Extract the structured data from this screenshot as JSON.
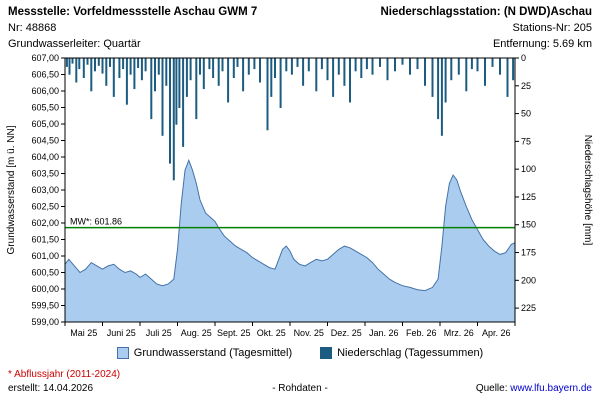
{
  "header": {
    "left": {
      "title": "Messstelle: Vorfeldmessstelle Aschau GWM 7",
      "nr": "Nr: 48868",
      "aquifer": "Grundwasserleiter: Quartär"
    },
    "right": {
      "title": "Niederschlagsstation: (N DWD)Aschau",
      "station_nr": "Stations-Nr: 205",
      "distance": "Entfernung: 5.69 km"
    }
  },
  "chart_data": {
    "type": "line+bar",
    "title": "",
    "left_axis": {
      "title": "Grundwasserstand [m ü. NN]",
      "min": 599.0,
      "max": 607.0,
      "step": 0.5,
      "tick_labels": [
        "607,00",
        "606,50",
        "606,00",
        "605,50",
        "605,00",
        "604,50",
        "604,00",
        "603,50",
        "603,00",
        "602,50",
        "602,00",
        "601,50",
        "601,00",
        "600,50",
        "600,00",
        "599,50",
        "599,00"
      ]
    },
    "right_axis": {
      "title": "Niederschlagshöhe [mm]",
      "tick_values": [
        0,
        25,
        50,
        75,
        100,
        125,
        150,
        175,
        200,
        225
      ],
      "plot_max": 237.5,
      "inverted": true
    },
    "x_axis": {
      "months": 12,
      "labels": [
        "Mai 25",
        "Juni 25",
        "Juli 25",
        "Aug. 25",
        "Sept. 25",
        "Okt. 25",
        "Nov. 25",
        "Dez. 25",
        "Jan. 26",
        "Feb. 26",
        "Mrz. 26",
        "Apr. 26"
      ]
    },
    "mw_line": {
      "value": 601.86,
      "label": "MW*: 601.86",
      "color": "#008000"
    },
    "colors": {
      "area_fill": "#aaccee",
      "area_line": "#4472a8",
      "precip": "#1b5c80",
      "frame": "#000000"
    },
    "series": {
      "groundwater": {
        "name": "Grundwasserstand (Tagesmittel)",
        "points": [
          [
            0,
            600.75
          ],
          [
            0.1,
            600.9
          ],
          [
            0.25,
            600.7
          ],
          [
            0.4,
            600.5
          ],
          [
            0.55,
            600.6
          ],
          [
            0.7,
            600.8
          ],
          [
            0.85,
            600.7
          ],
          [
            1.0,
            600.6
          ],
          [
            1.15,
            600.7
          ],
          [
            1.3,
            600.75
          ],
          [
            1.45,
            600.6
          ],
          [
            1.6,
            600.5
          ],
          [
            1.75,
            600.55
          ],
          [
            1.9,
            600.45
          ],
          [
            2.0,
            600.35
          ],
          [
            2.15,
            600.45
          ],
          [
            2.3,
            600.3
          ],
          [
            2.45,
            600.15
          ],
          [
            2.6,
            600.1
          ],
          [
            2.75,
            600.15
          ],
          [
            2.9,
            600.3
          ],
          [
            3.0,
            601.2
          ],
          [
            3.1,
            602.6
          ],
          [
            3.2,
            603.6
          ],
          [
            3.3,
            603.9
          ],
          [
            3.4,
            603.6
          ],
          [
            3.5,
            603.2
          ],
          [
            3.6,
            602.7
          ],
          [
            3.75,
            602.3
          ],
          [
            3.9,
            602.15
          ],
          [
            4.0,
            602.05
          ],
          [
            4.1,
            601.85
          ],
          [
            4.25,
            601.6
          ],
          [
            4.4,
            601.45
          ],
          [
            4.55,
            601.3
          ],
          [
            4.7,
            601.2
          ],
          [
            4.85,
            601.1
          ],
          [
            5.0,
            600.95
          ],
          [
            5.15,
            600.85
          ],
          [
            5.3,
            600.75
          ],
          [
            5.45,
            600.65
          ],
          [
            5.6,
            600.6
          ],
          [
            5.7,
            600.9
          ],
          [
            5.8,
            601.2
          ],
          [
            5.9,
            601.3
          ],
          [
            6.0,
            601.15
          ],
          [
            6.1,
            600.9
          ],
          [
            6.25,
            600.75
          ],
          [
            6.4,
            600.7
          ],
          [
            6.55,
            600.8
          ],
          [
            6.7,
            600.9
          ],
          [
            6.85,
            600.85
          ],
          [
            7.0,
            600.9
          ],
          [
            7.15,
            601.05
          ],
          [
            7.3,
            601.2
          ],
          [
            7.45,
            601.3
          ],
          [
            7.6,
            601.25
          ],
          [
            7.75,
            601.15
          ],
          [
            7.9,
            601.05
          ],
          [
            8.05,
            600.95
          ],
          [
            8.2,
            600.8
          ],
          [
            8.35,
            600.6
          ],
          [
            8.5,
            600.45
          ],
          [
            8.65,
            600.3
          ],
          [
            8.8,
            600.2
          ],
          [
            9.0,
            600.1
          ],
          [
            9.2,
            600.05
          ],
          [
            9.4,
            599.98
          ],
          [
            9.6,
            599.95
          ],
          [
            9.8,
            600.05
          ],
          [
            9.95,
            600.3
          ],
          [
            10.05,
            601.3
          ],
          [
            10.15,
            602.5
          ],
          [
            10.25,
            603.2
          ],
          [
            10.35,
            603.45
          ],
          [
            10.45,
            603.3
          ],
          [
            10.55,
            602.95
          ],
          [
            10.7,
            602.5
          ],
          [
            10.85,
            602.1
          ],
          [
            11.0,
            601.8
          ],
          [
            11.15,
            601.5
          ],
          [
            11.3,
            601.3
          ],
          [
            11.45,
            601.15
          ],
          [
            11.6,
            601.05
          ],
          [
            11.75,
            601.1
          ],
          [
            11.9,
            601.35
          ],
          [
            12,
            601.4
          ]
        ]
      },
      "precipitation": {
        "name": "Niederschlag (Tagessummen)",
        "bars": [
          [
            0.05,
            8
          ],
          [
            0.12,
            15
          ],
          [
            0.2,
            5
          ],
          [
            0.3,
            22
          ],
          [
            0.38,
            10
          ],
          [
            0.5,
            18
          ],
          [
            0.6,
            6
          ],
          [
            0.7,
            30
          ],
          [
            0.8,
            12
          ],
          [
            0.9,
            7
          ],
          [
            1.0,
            14
          ],
          [
            1.1,
            25
          ],
          [
            1.2,
            8
          ],
          [
            1.3,
            35
          ],
          [
            1.45,
            18
          ],
          [
            1.55,
            10
          ],
          [
            1.65,
            42
          ],
          [
            1.75,
            15
          ],
          [
            1.85,
            28
          ],
          [
            1.95,
            9
          ],
          [
            2.05,
            20
          ],
          [
            2.15,
            12
          ],
          [
            2.3,
            55
          ],
          [
            2.4,
            30
          ],
          [
            2.5,
            15
          ],
          [
            2.6,
            70
          ],
          [
            2.7,
            25
          ],
          [
            2.8,
            95
          ],
          [
            2.9,
            110
          ],
          [
            2.97,
            60
          ],
          [
            3.05,
            45
          ],
          [
            3.15,
            80
          ],
          [
            3.25,
            35
          ],
          [
            3.35,
            20
          ],
          [
            3.5,
            55
          ],
          [
            3.6,
            15
          ],
          [
            3.7,
            28
          ],
          [
            3.85,
            10
          ],
          [
            3.95,
            18
          ],
          [
            4.1,
            25
          ],
          [
            4.2,
            12
          ],
          [
            4.35,
            40
          ],
          [
            4.5,
            18
          ],
          [
            4.6,
            8
          ],
          [
            4.75,
            30
          ],
          [
            4.9,
            15
          ],
          [
            5.05,
            10
          ],
          [
            5.2,
            22
          ],
          [
            5.4,
            65
          ],
          [
            5.5,
            35
          ],
          [
            5.6,
            18
          ],
          [
            5.75,
            45
          ],
          [
            5.9,
            12
          ],
          [
            6.05,
            15
          ],
          [
            6.2,
            8
          ],
          [
            6.35,
            25
          ],
          [
            6.5,
            12
          ],
          [
            6.7,
            30
          ],
          [
            6.85,
            10
          ],
          [
            7.0,
            20
          ],
          [
            7.15,
            35
          ],
          [
            7.3,
            15
          ],
          [
            7.45,
            25
          ],
          [
            7.6,
            40
          ],
          [
            7.75,
            12
          ],
          [
            7.9,
            18
          ],
          [
            8.05,
            10
          ],
          [
            8.2,
            15
          ],
          [
            8.4,
            8
          ],
          [
            8.6,
            20
          ],
          [
            8.8,
            12
          ],
          [
            9.0,
            6
          ],
          [
            9.2,
            15
          ],
          [
            9.4,
            10
          ],
          [
            9.6,
            25
          ],
          [
            9.8,
            35
          ],
          [
            9.95,
            55
          ],
          [
            10.05,
            70
          ],
          [
            10.15,
            40
          ],
          [
            10.3,
            20
          ],
          [
            10.5,
            15
          ],
          [
            10.7,
            30
          ],
          [
            10.85,
            10
          ],
          [
            11.0,
            12
          ],
          [
            11.2,
            25
          ],
          [
            11.4,
            8
          ],
          [
            11.6,
            15
          ],
          [
            11.8,
            35
          ],
          [
            11.95,
            20
          ]
        ]
      }
    }
  },
  "legend": {
    "groundwater": "Grundwasserstand (Tagesmittel)",
    "precipitation": "Niederschlag (Tagessummen)"
  },
  "footer": {
    "note": "* Abflussjahr (2011-2024)",
    "created": "erstellt:  14.04.2026",
    "center": "- Rohdaten -",
    "source_label": "Quelle:",
    "source_url": "www.lfu.bayern.de"
  }
}
